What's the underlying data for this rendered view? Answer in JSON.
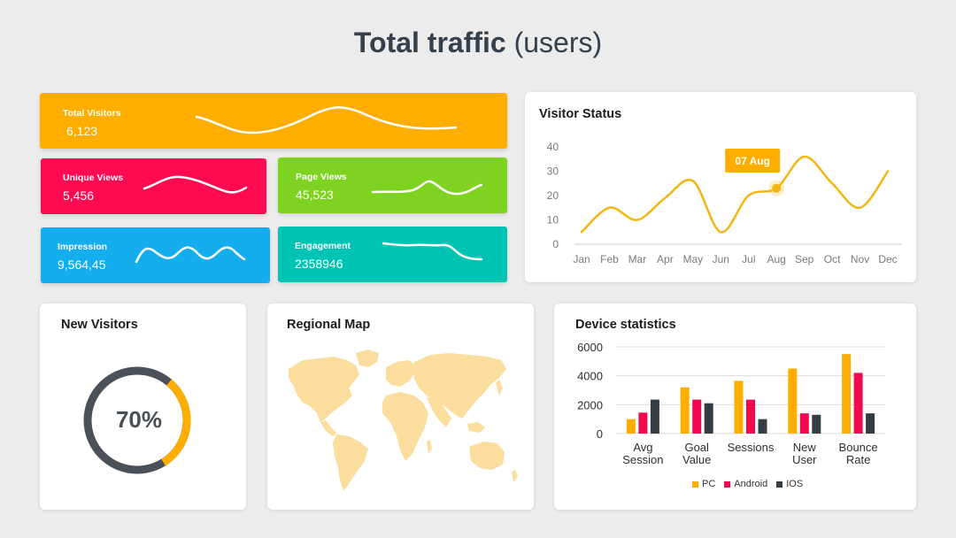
{
  "header": {
    "title_bold": "Total traffic",
    "title_light": "(users)"
  },
  "colors": {
    "orange": "#FFAE00",
    "red": "#FF0A50",
    "green": "#7ED321",
    "blue": "#14AEEF",
    "teal": "#00C4B3",
    "donut_track": "#4A5159",
    "map": "#FBDD9E",
    "pc": "#FFAE00",
    "android": "#F0094E",
    "ios": "#343C44"
  },
  "stats": {
    "total_visitors": {
      "label": "Total Visitors",
      "value": "6,123"
    },
    "unique_views": {
      "label": "Unique Views",
      "value": "5,456"
    },
    "page_views": {
      "label": "Page Views",
      "value": "45,523"
    },
    "impression": {
      "label": "Impression",
      "value": "9,564,45"
    },
    "engagement": {
      "label": "Engagement",
      "value": "2358946"
    }
  },
  "visitor_status": {
    "title": "Visitor Status",
    "callout": "07 Aug",
    "chart_data": {
      "type": "line",
      "x": [
        "Jan",
        "Feb",
        "Mar",
        "Apr",
        "May",
        "Jun",
        "Jul",
        "Aug",
        "Sep",
        "Oct",
        "Nov",
        "Dec"
      ],
      "values": [
        5,
        15,
        10,
        19,
        26,
        5,
        20,
        23,
        36,
        25,
        15,
        30
      ],
      "yticks": [
        0,
        10,
        20,
        30,
        40
      ],
      "ylim": [
        0,
        40
      ],
      "highlight": {
        "x": "Aug",
        "value": 23,
        "label": "07 Aug"
      },
      "color": "#F2B613",
      "grid": false
    }
  },
  "new_visitors": {
    "title": "New Visitors",
    "value_label": "70%",
    "percent": 70
  },
  "regional_map": {
    "title": "Regional Map"
  },
  "device_statistics": {
    "title": "Device statistics",
    "chart_data": {
      "type": "bar",
      "categories": [
        "Avg Session",
        "Goal Value",
        "Sessions",
        "New User",
        "Bounce Rate"
      ],
      "series": [
        {
          "name": "PC",
          "values": [
            1000,
            3200,
            3650,
            4500,
            5500
          ]
        },
        {
          "name": "Android",
          "values": [
            1450,
            2350,
            2350,
            1400,
            4200
          ]
        },
        {
          "name": "IOS",
          "values": [
            2350,
            2100,
            1000,
            1300,
            1400
          ]
        }
      ],
      "yticks": [
        0,
        2000,
        4000,
        6000
      ],
      "ylim": [
        0,
        6000
      ],
      "grid": true,
      "legend": "bottom"
    }
  }
}
